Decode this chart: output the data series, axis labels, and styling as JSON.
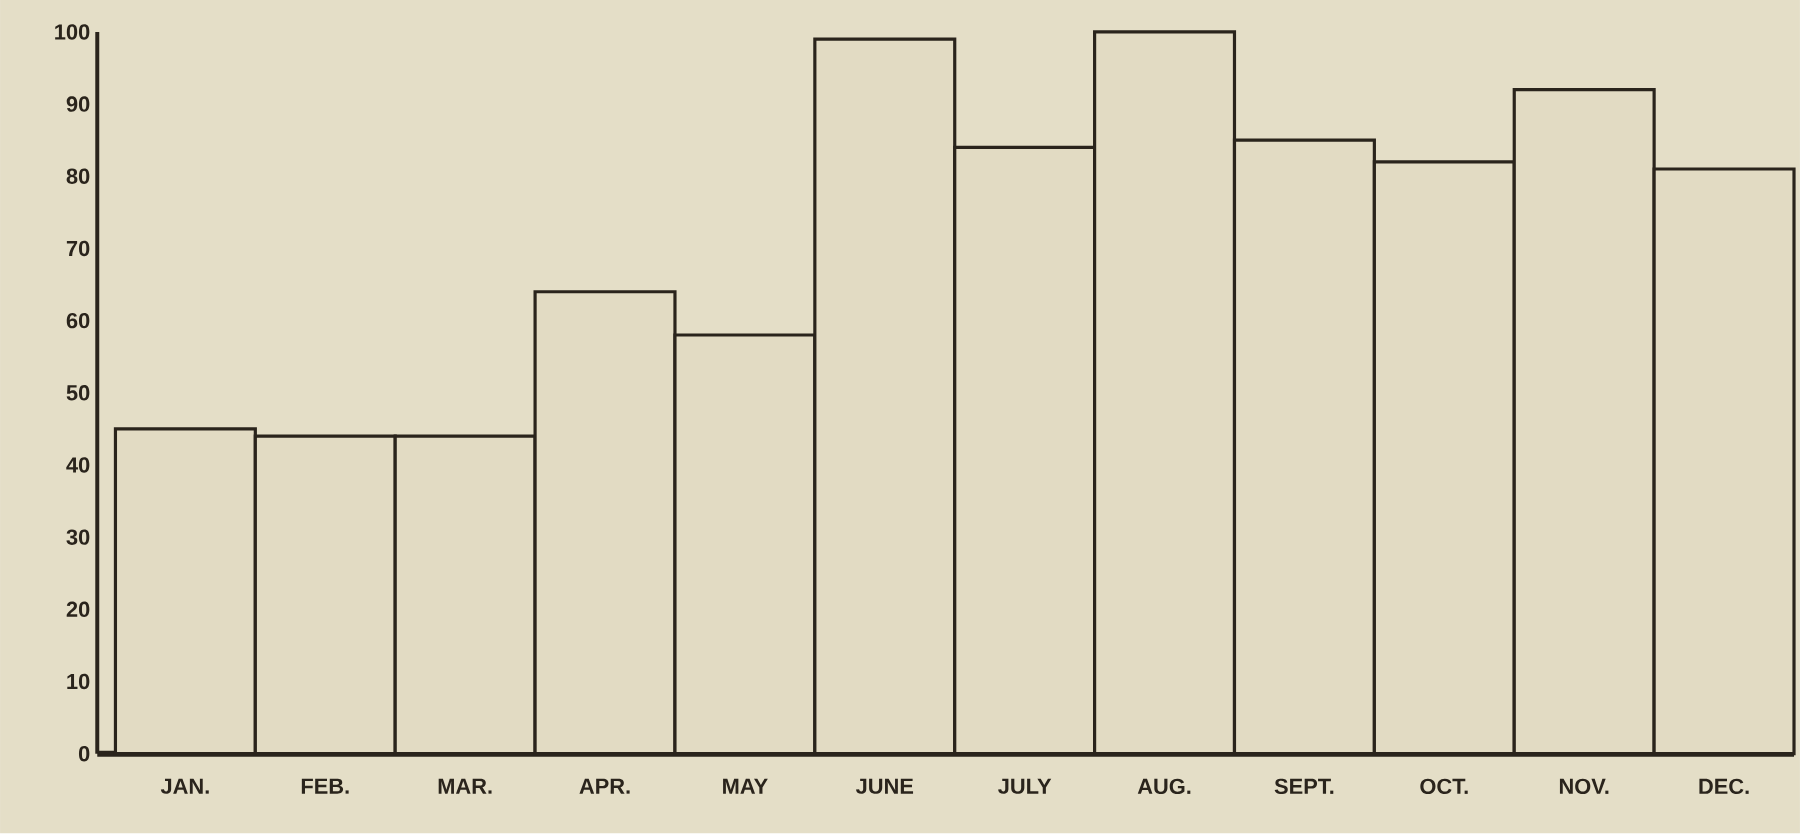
{
  "chart_data": {
    "type": "bar",
    "categories": [
      "JAN.",
      "FEB.",
      "MAR.",
      "APR.",
      "MAY",
      "JUNE",
      "JULY",
      "AUG.",
      "SEPT.",
      "OCT.",
      "NOV.",
      "DEC."
    ],
    "values": [
      45,
      44,
      44,
      64,
      58,
      99,
      84,
      100,
      85,
      82,
      92,
      81
    ],
    "color": "#e2dbc3",
    "ylim": [
      0,
      100
    ],
    "yticks": [
      0,
      10,
      20,
      30,
      40,
      50,
      60,
      70,
      80,
      90,
      100
    ]
  }
}
